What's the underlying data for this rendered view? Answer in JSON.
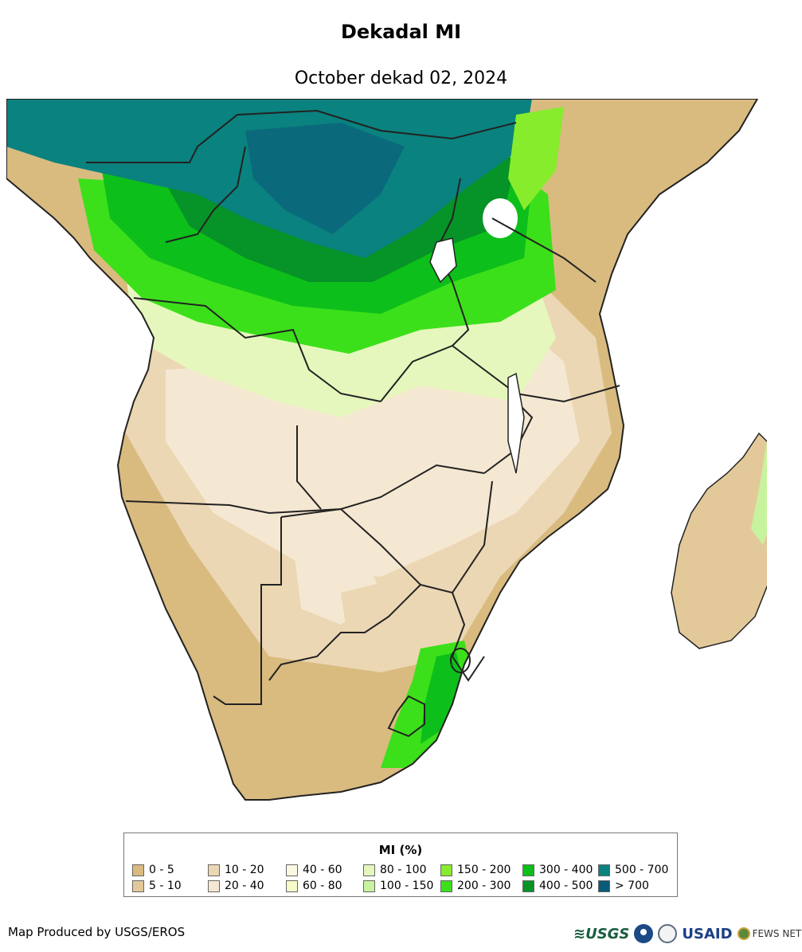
{
  "title": "Dekadal MI",
  "subtitle": "October dekad 02, 2024",
  "legend": {
    "title": "MI (%)",
    "items": [
      {
        "label": "0 - 5",
        "color": "#d9bb80"
      },
      {
        "label": "5 - 10",
        "color": "#e3c99a"
      },
      {
        "label": "10 - 20",
        "color": "#ecd7b4"
      },
      {
        "label": "20 - 40",
        "color": "#f5e8d2"
      },
      {
        "label": "40 - 60",
        "color": "#fcf9e3"
      },
      {
        "label": "60 - 80",
        "color": "#f6fbc9"
      },
      {
        "label": "80 - 100",
        "color": "#e6f7bd"
      },
      {
        "label": "100 - 150",
        "color": "#c8f39e"
      },
      {
        "label": "150 - 200",
        "color": "#86ec2c"
      },
      {
        "label": "200 - 300",
        "color": "#3ce01a"
      },
      {
        "label": "300 - 400",
        "color": "#0dbf1a"
      },
      {
        "label": "400 - 500",
        "color": "#069327"
      },
      {
        "label": "500 - 700",
        "color": "#0a827f"
      },
      {
        "label": "> 700",
        "color": "#0a5a7a"
      }
    ]
  },
  "credit": "Map Produced by USGS/EROS",
  "logos": {
    "usgs": "≋USGS",
    "usaid": "USAID",
    "fews": "FEWS NET"
  }
}
